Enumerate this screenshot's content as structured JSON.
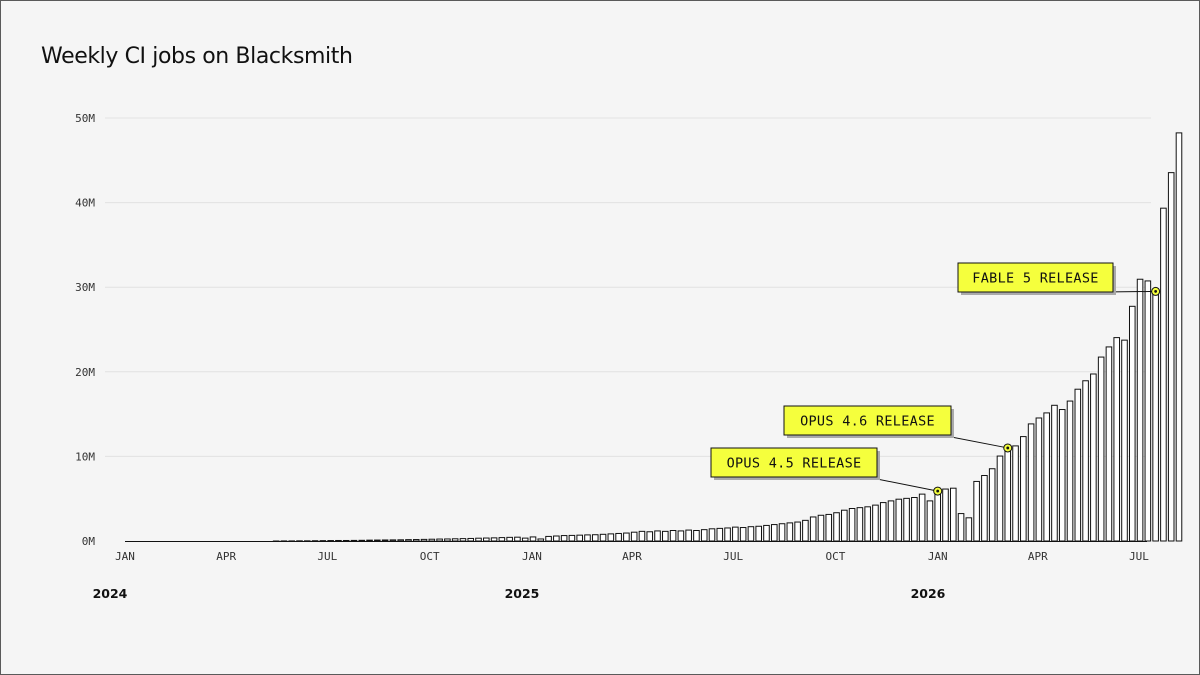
{
  "chart_data": {
    "type": "bar",
    "title": "Weekly CI jobs on Blacksmith",
    "xlabel": "",
    "ylabel": "",
    "ylim": [
      0,
      50000000
    ],
    "y_ticks": [
      {
        "value": 0,
        "label": "0M"
      },
      {
        "value": 10000000,
        "label": "10M"
      },
      {
        "value": 20000000,
        "label": "20M"
      },
      {
        "value": 30000000,
        "label": "30M"
      },
      {
        "value": 40000000,
        "label": "40M"
      },
      {
        "value": 50000000,
        "label": "50M"
      }
    ],
    "x_range": [
      "2024-01-01",
      "2026-07-01"
    ],
    "x_ticks": [
      {
        "date": "2024-01-01",
        "label": "JAN"
      },
      {
        "date": "2024-04-01",
        "label": "APR"
      },
      {
        "date": "2024-07-01",
        "label": "JUL"
      },
      {
        "date": "2024-10-01",
        "label": "OCT"
      },
      {
        "date": "2025-01-01",
        "label": "JAN"
      },
      {
        "date": "2025-04-01",
        "label": "APR"
      },
      {
        "date": "2025-07-01",
        "label": "JUL"
      },
      {
        "date": "2025-10-01",
        "label": "OCT"
      },
      {
        "date": "2026-01-01",
        "label": "JAN"
      },
      {
        "date": "2026-04-01",
        "label": "APR"
      },
      {
        "date": "2026-07-01",
        "label": "JUL"
      }
    ],
    "year_labels": [
      {
        "date": "2024-01-01",
        "label": "2024"
      },
      {
        "date": "2025-01-01",
        "label": "2025"
      },
      {
        "date": "2026-01-01",
        "label": "2026"
      }
    ],
    "grid": true,
    "legend": "none",
    "bar_fill": "#ffffff",
    "bar_stroke": "#111111",
    "grid_color": "#e2e2e2",
    "series": [
      {
        "weeks_start": "2024-01-01",
        "values": [
          0,
          0,
          0,
          0,
          10000,
          10000,
          10000,
          10000,
          20000,
          20000,
          20000,
          20000,
          30000,
          30000,
          40000,
          40000,
          50000,
          50000,
          50000,
          60000,
          70000,
          70000,
          80000,
          80000,
          90000,
          100000,
          110000,
          120000,
          120000,
          130000,
          140000,
          160000,
          170000,
          180000,
          190000,
          200000,
          220000,
          230000,
          250000,
          270000,
          290000,
          300000,
          320000,
          340000,
          360000,
          390000,
          410000,
          430000,
          460000,
          490000,
          510000,
          400000,
          540000,
          300000,
          600000,
          650000,
          700000,
          720000,
          750000,
          780000,
          800000,
          850000,
          900000,
          950000,
          1000000,
          1100000,
          1200000,
          1150000,
          1250000,
          1200000,
          1300000,
          1250000,
          1350000,
          1300000,
          1400000,
          1500000,
          1550000,
          1600000,
          1700000,
          1650000,
          1750000,
          1800000,
          1900000,
          2000000,
          2100000,
          2200000,
          2300000,
          2500000,
          2900000,
          3100000,
          3200000,
          3400000,
          3700000,
          3900000,
          4000000,
          4100000,
          4300000,
          4600000,
          4800000,
          5000000,
          5100000,
          5200000,
          5600000,
          4800000,
          5900000,
          6200000,
          6300000,
          3300000,
          2800000,
          7100000,
          7800000,
          8600000,
          10100000,
          11000000,
          11300000,
          12400000,
          13900000,
          14600000,
          15200000,
          16100000,
          15600000,
          16600000,
          18000000,
          19000000,
          19800000,
          21800000,
          23000000,
          24100000,
          23800000,
          27800000,
          31000000,
          30800000,
          29500000,
          39400000,
          43600000,
          48300000
        ]
      }
    ],
    "annotations": [
      {
        "label": "OPUS 4.5 RELEASE",
        "week_index": 104
      },
      {
        "label": "OPUS 4.6 RELEASE",
        "week_index": 113
      },
      {
        "label": "FABLE 5 RELEASE",
        "week_index": 132
      }
    ],
    "callout_fill": "#f5ff3d",
    "callout_stroke": "#111111",
    "callout_shadow": "#aaaaaa"
  }
}
